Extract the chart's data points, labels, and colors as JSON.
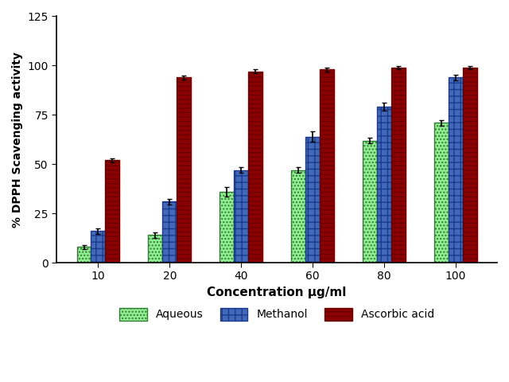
{
  "concentrations": [
    10,
    20,
    40,
    60,
    80,
    100
  ],
  "aqueous_values": [
    8,
    14,
    36,
    47,
    62,
    71
  ],
  "methanol_values": [
    16,
    31,
    47,
    64,
    79,
    94
  ],
  "ascorbic_values": [
    52,
    94,
    97,
    98,
    99,
    99
  ],
  "aqueous_errors": [
    1.0,
    1.5,
    2.5,
    1.5,
    1.5,
    1.5
  ],
  "methanol_errors": [
    1.5,
    1.5,
    1.5,
    2.5,
    2.0,
    1.5
  ],
  "ascorbic_errors": [
    1.0,
    1.0,
    1.0,
    1.0,
    0.8,
    0.8
  ],
  "aqueous_facecolor": "#90ee90",
  "aqueous_edgecolor": "#2e7d32",
  "methanol_facecolor": "#4169b8",
  "methanol_edgecolor": "#1a3a8f",
  "ascorbic_facecolor": "#8b0000",
  "ascorbic_edgecolor": "#6b0000",
  "xlabel": "Concentration μg/ml",
  "ylabel": "% DPPH Scavenging activity",
  "ylim": [
    0,
    125
  ],
  "yticks": [
    0,
    25,
    50,
    75,
    100,
    125
  ],
  "bar_width": 0.2,
  "legend_labels": [
    "Aqueous",
    "Methanol",
    "Ascorbic acid"
  ]
}
